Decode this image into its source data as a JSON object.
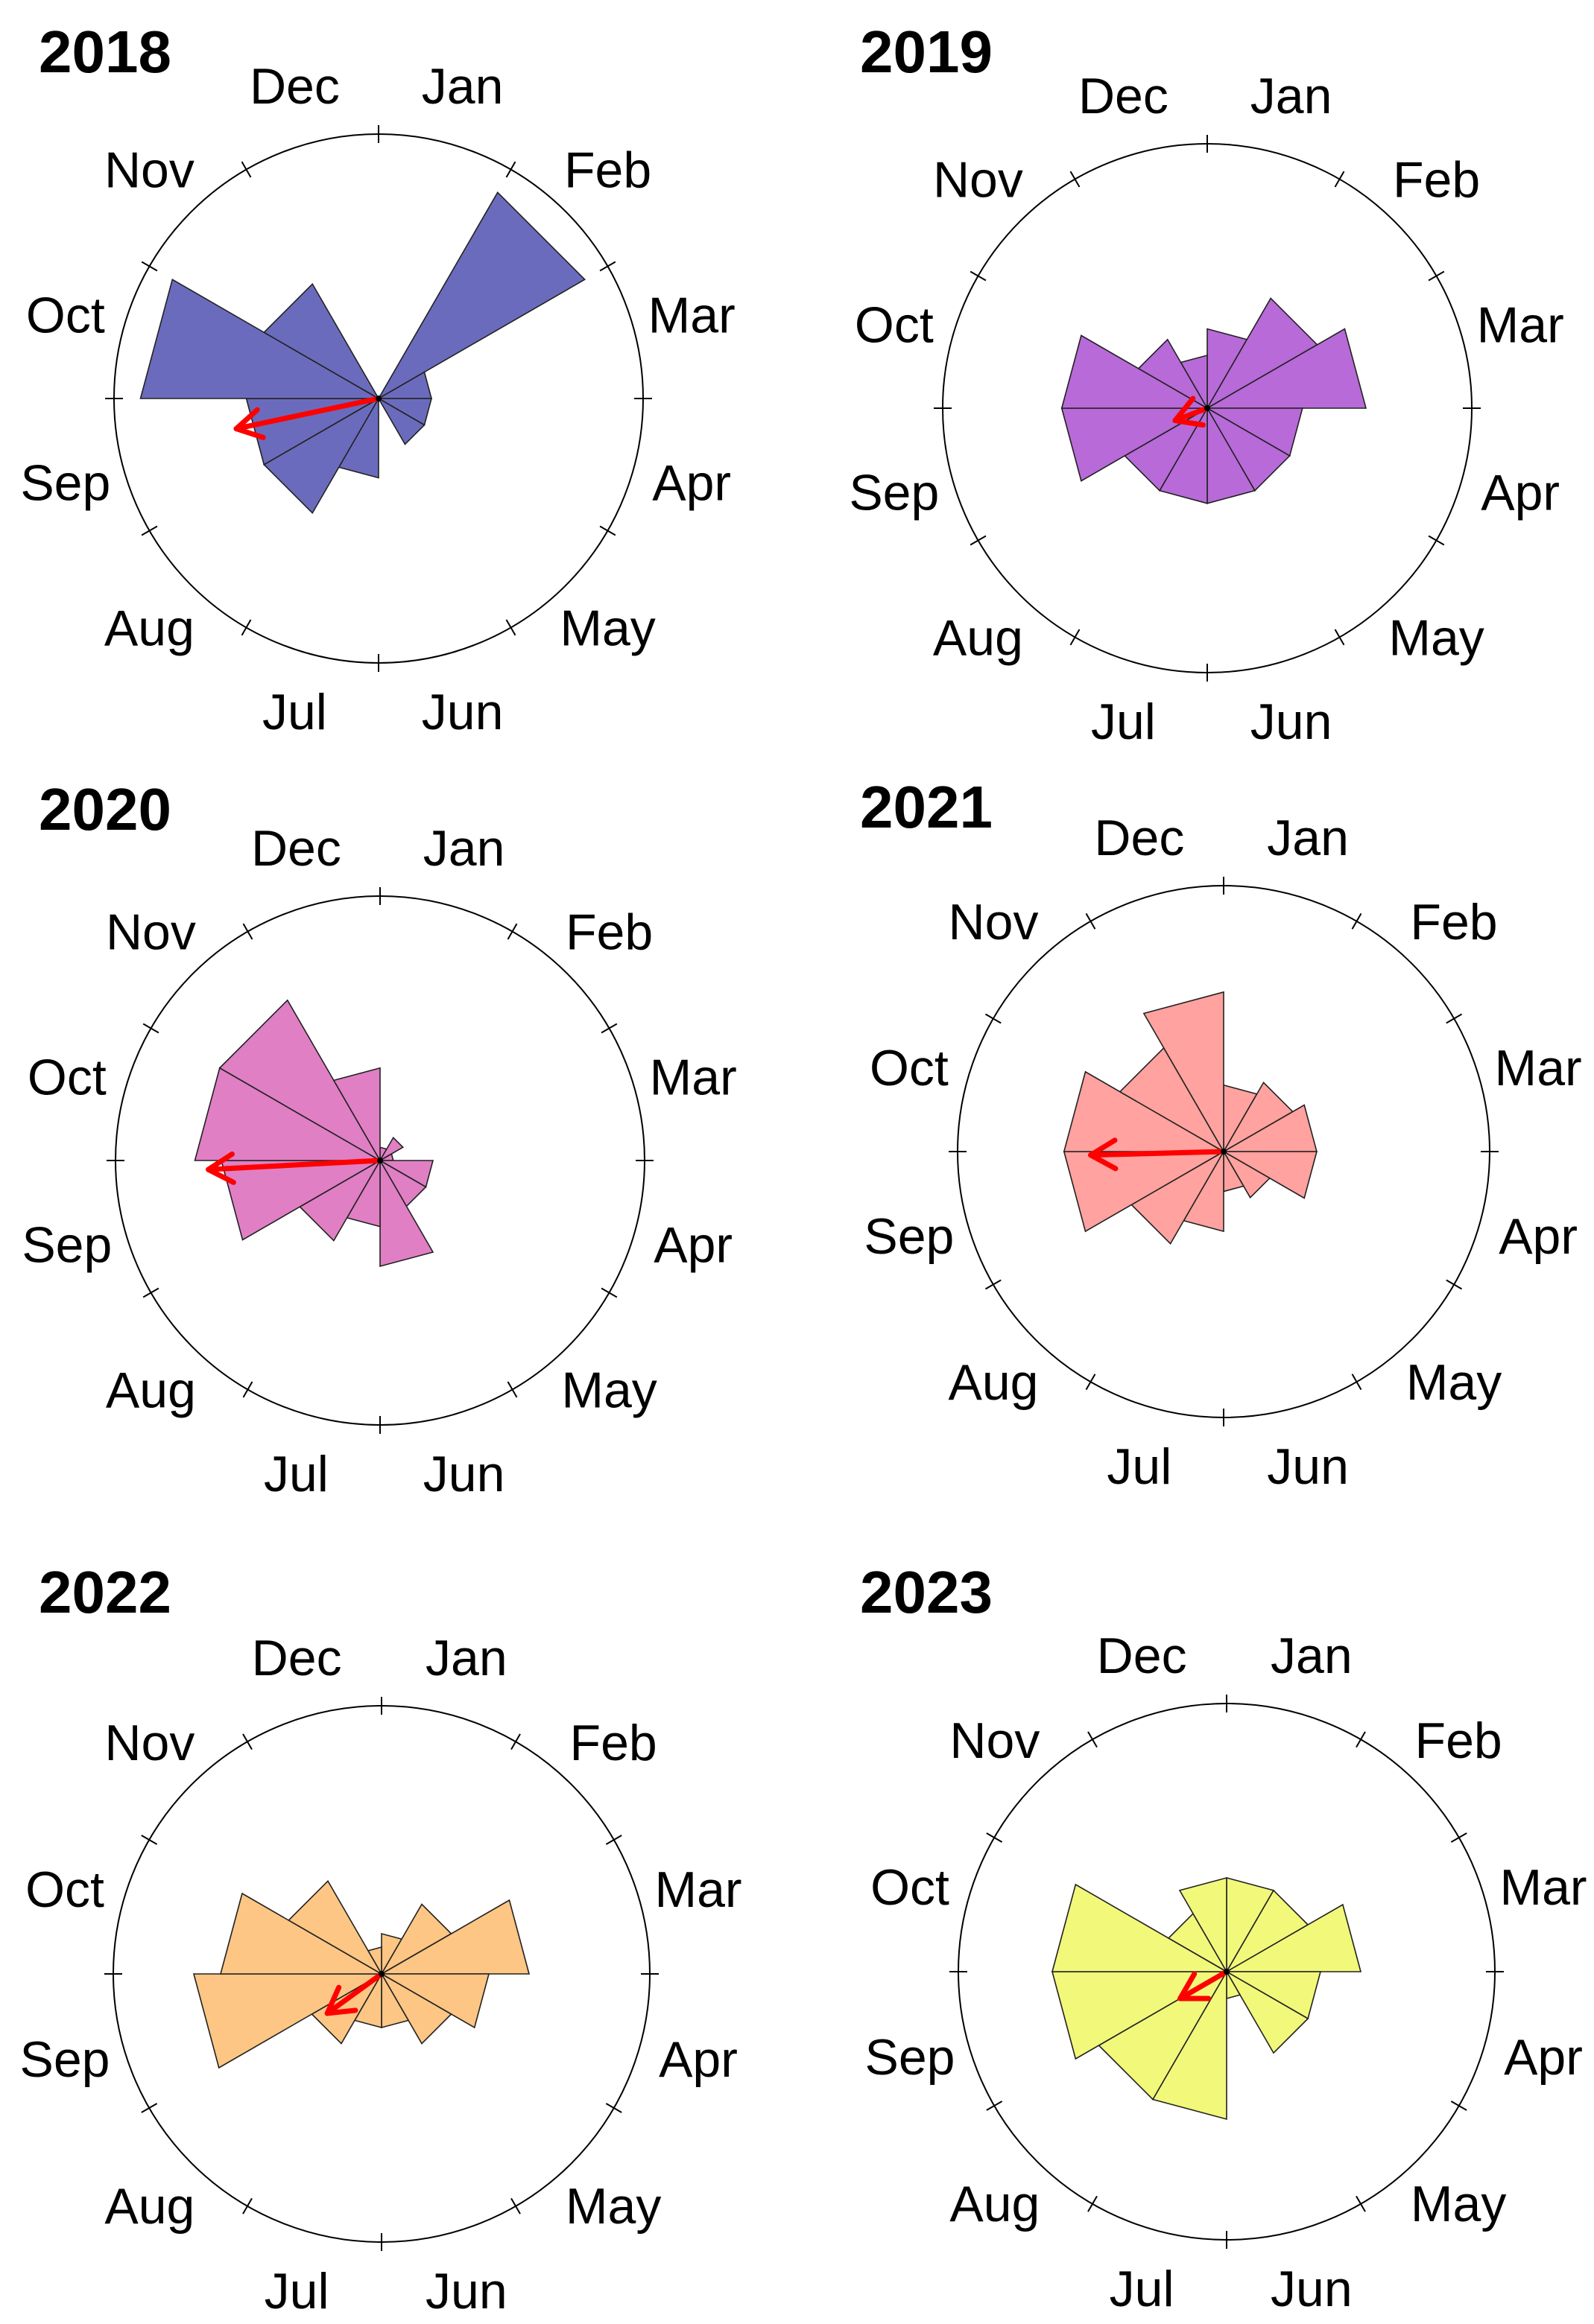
{
  "chart_data": [
    {
      "type": "rose",
      "title": "2018",
      "month_labels": [
        "Jan",
        "Feb",
        "Mar",
        "Apr",
        "May",
        "Jun",
        "Jul",
        "Aug",
        "Sep",
        "Oct",
        "Nov",
        "Dec"
      ],
      "fill": "#6b6bbd",
      "r_max": 1.0,
      "values": [
        0,
        0.9,
        0.2,
        0.2,
        0.2,
        0,
        0.3,
        0.5,
        0.5,
        0.9,
        0.5,
        0
      ],
      "mean_vector": {
        "angle_month": 8.6,
        "length": 0.55,
        "color": "#ff0000"
      }
    },
    {
      "type": "rose",
      "title": "2019",
      "month_labels": [
        "Jan",
        "Feb",
        "Mar",
        "Apr",
        "May",
        "Jun",
        "Jul",
        "Aug",
        "Sep",
        "Oct",
        "Nov",
        "Dec"
      ],
      "fill": "#b86ad8",
      "r_max": 1.0,
      "values": [
        0.3,
        0.48,
        0.6,
        0.36,
        0.36,
        0.36,
        0.36,
        0.36,
        0.55,
        0.55,
        0.3,
        0.2
      ],
      "mean_vector": {
        "angle_month": 8.3,
        "length": 0.13,
        "color": "#ff0000"
      }
    },
    {
      "type": "rose",
      "title": "2020",
      "month_labels": [
        "Jan",
        "Feb",
        "Mar",
        "Apr",
        "May",
        "Jun",
        "Jul",
        "Aug",
        "Sep",
        "Oct",
        "Nov",
        "Dec"
      ],
      "fill": "#e07fc4",
      "r_max": 1.0,
      "values": [
        0.05,
        0.1,
        0.05,
        0.2,
        0.2,
        0.4,
        0.25,
        0.35,
        0.6,
        0.7,
        0.7,
        0.35
      ],
      "mean_vector": {
        "angle_month": 8.9,
        "length": 0.65,
        "color": "#ff0000"
      }
    },
    {
      "type": "rose",
      "title": "2021",
      "month_labels": [
        "Jan",
        "Feb",
        "Mar",
        "Apr",
        "May",
        "Jun",
        "Jul",
        "Aug",
        "Sep",
        "Oct",
        "Nov",
        "Dec"
      ],
      "fill": "#ffa2a0",
      "r_max": 1.0,
      "values": [
        0.25,
        0.3,
        0.35,
        0.35,
        0.2,
        0.15,
        0.3,
        0.4,
        0.6,
        0.6,
        0.45,
        0.6
      ],
      "mean_vector": {
        "angle_month": 8.95,
        "length": 0.5,
        "color": "#ff0000"
      }
    },
    {
      "type": "rose",
      "title": "2022",
      "month_labels": [
        "Jan",
        "Feb",
        "Mar",
        "Apr",
        "May",
        "Jun",
        "Jul",
        "Aug",
        "Sep",
        "Oct",
        "Nov",
        "Dec"
      ],
      "fill": "#fdc684",
      "r_max": 1.0,
      "values": [
        0.15,
        0.3,
        0.55,
        0.4,
        0.3,
        0.2,
        0.2,
        0.3,
        0.7,
        0.6,
        0.4,
        0.1
      ],
      "mean_vector": {
        "angle_month": 7.8,
        "length": 0.25,
        "color": "#ff0000"
      }
    },
    {
      "type": "rose",
      "title": "2023",
      "month_labels": [
        "Jan",
        "Feb",
        "Mar",
        "Apr",
        "May",
        "Jun",
        "Jul",
        "Aug",
        "Sep",
        "Oct",
        "Nov",
        "Dec"
      ],
      "fill": "#f2f87a",
      "r_max": 1.0,
      "values": [
        0.35,
        0.35,
        0.5,
        0.35,
        0.35,
        0.1,
        0.55,
        0.55,
        0.65,
        0.65,
        0.25,
        0.35
      ],
      "mean_vector": {
        "angle_month": 8.0,
        "length": 0.2,
        "color": "#ff0000"
      }
    }
  ]
}
